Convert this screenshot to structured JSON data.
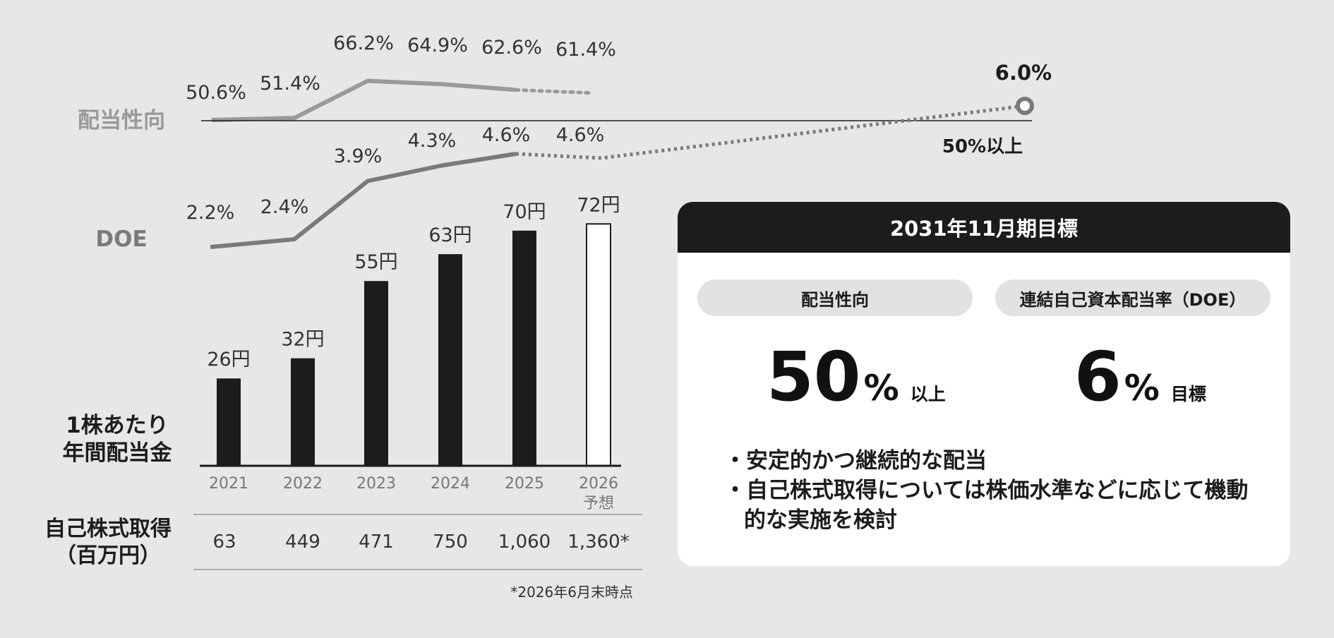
{
  "chart_data": {
    "type": "bar",
    "categories": [
      "2021",
      "2022",
      "2023",
      "2024",
      "2025",
      "2026\n予想"
    ],
    "bars": {
      "name": "1株あたり年間配当金",
      "values": [
        26,
        32,
        55,
        63,
        70,
        72
      ],
      "labels": [
        "26円",
        "32円",
        "55円",
        "63円",
        "70円",
        "72円"
      ],
      "forecast_from_index": 5
    },
    "payout_ratio": {
      "name": "配当性向",
      "values": [
        50.6,
        51.4,
        66.2,
        64.9,
        62.6,
        61.4
      ],
      "labels": [
        "50.6%",
        "51.4%",
        "66.2%",
        "64.9%",
        "62.6%",
        "61.4%"
      ]
    },
    "doe": {
      "name": "DOE",
      "values": [
        2.2,
        2.4,
        3.9,
        4.3,
        4.6,
        4.6
      ],
      "labels": [
        "2.2%",
        "2.4%",
        "3.9%",
        "4.3%",
        "4.6%",
        "4.6%"
      ],
      "target": {
        "value": 6.0,
        "label": "6.0%"
      }
    },
    "payout_target_label": "50%以上",
    "buyback": {
      "title_line1": "自己株式取得",
      "title_line2": "（百万円）",
      "values": [
        "63",
        "449",
        "471",
        "750",
        "1,060",
        "1,360*"
      ]
    },
    "bar_title_line1": "1株あたり",
    "bar_title_line2": "年間配当金",
    "footnote": "*2026年6月末時点"
  },
  "colors": {
    "background": "#e7e7e7",
    "bar": "#1c1c1c",
    "payout_line": "#9a9a9a",
    "doe_line": "#7a7a7a",
    "header": "#1c1c1c"
  },
  "goal": {
    "header": "2031年11月期目標",
    "payout": {
      "label": "配当性向",
      "number": "50",
      "unit": "%",
      "suffix": "以上"
    },
    "doe": {
      "label": "連結自己資本配当率（DOE）",
      "number": "6",
      "unit": "%",
      "suffix": "目標"
    },
    "bullets": [
      "安定的かつ継続的な配当",
      "自己株式取得については株価水準などに応じて機動的な実施を検討"
    ]
  }
}
